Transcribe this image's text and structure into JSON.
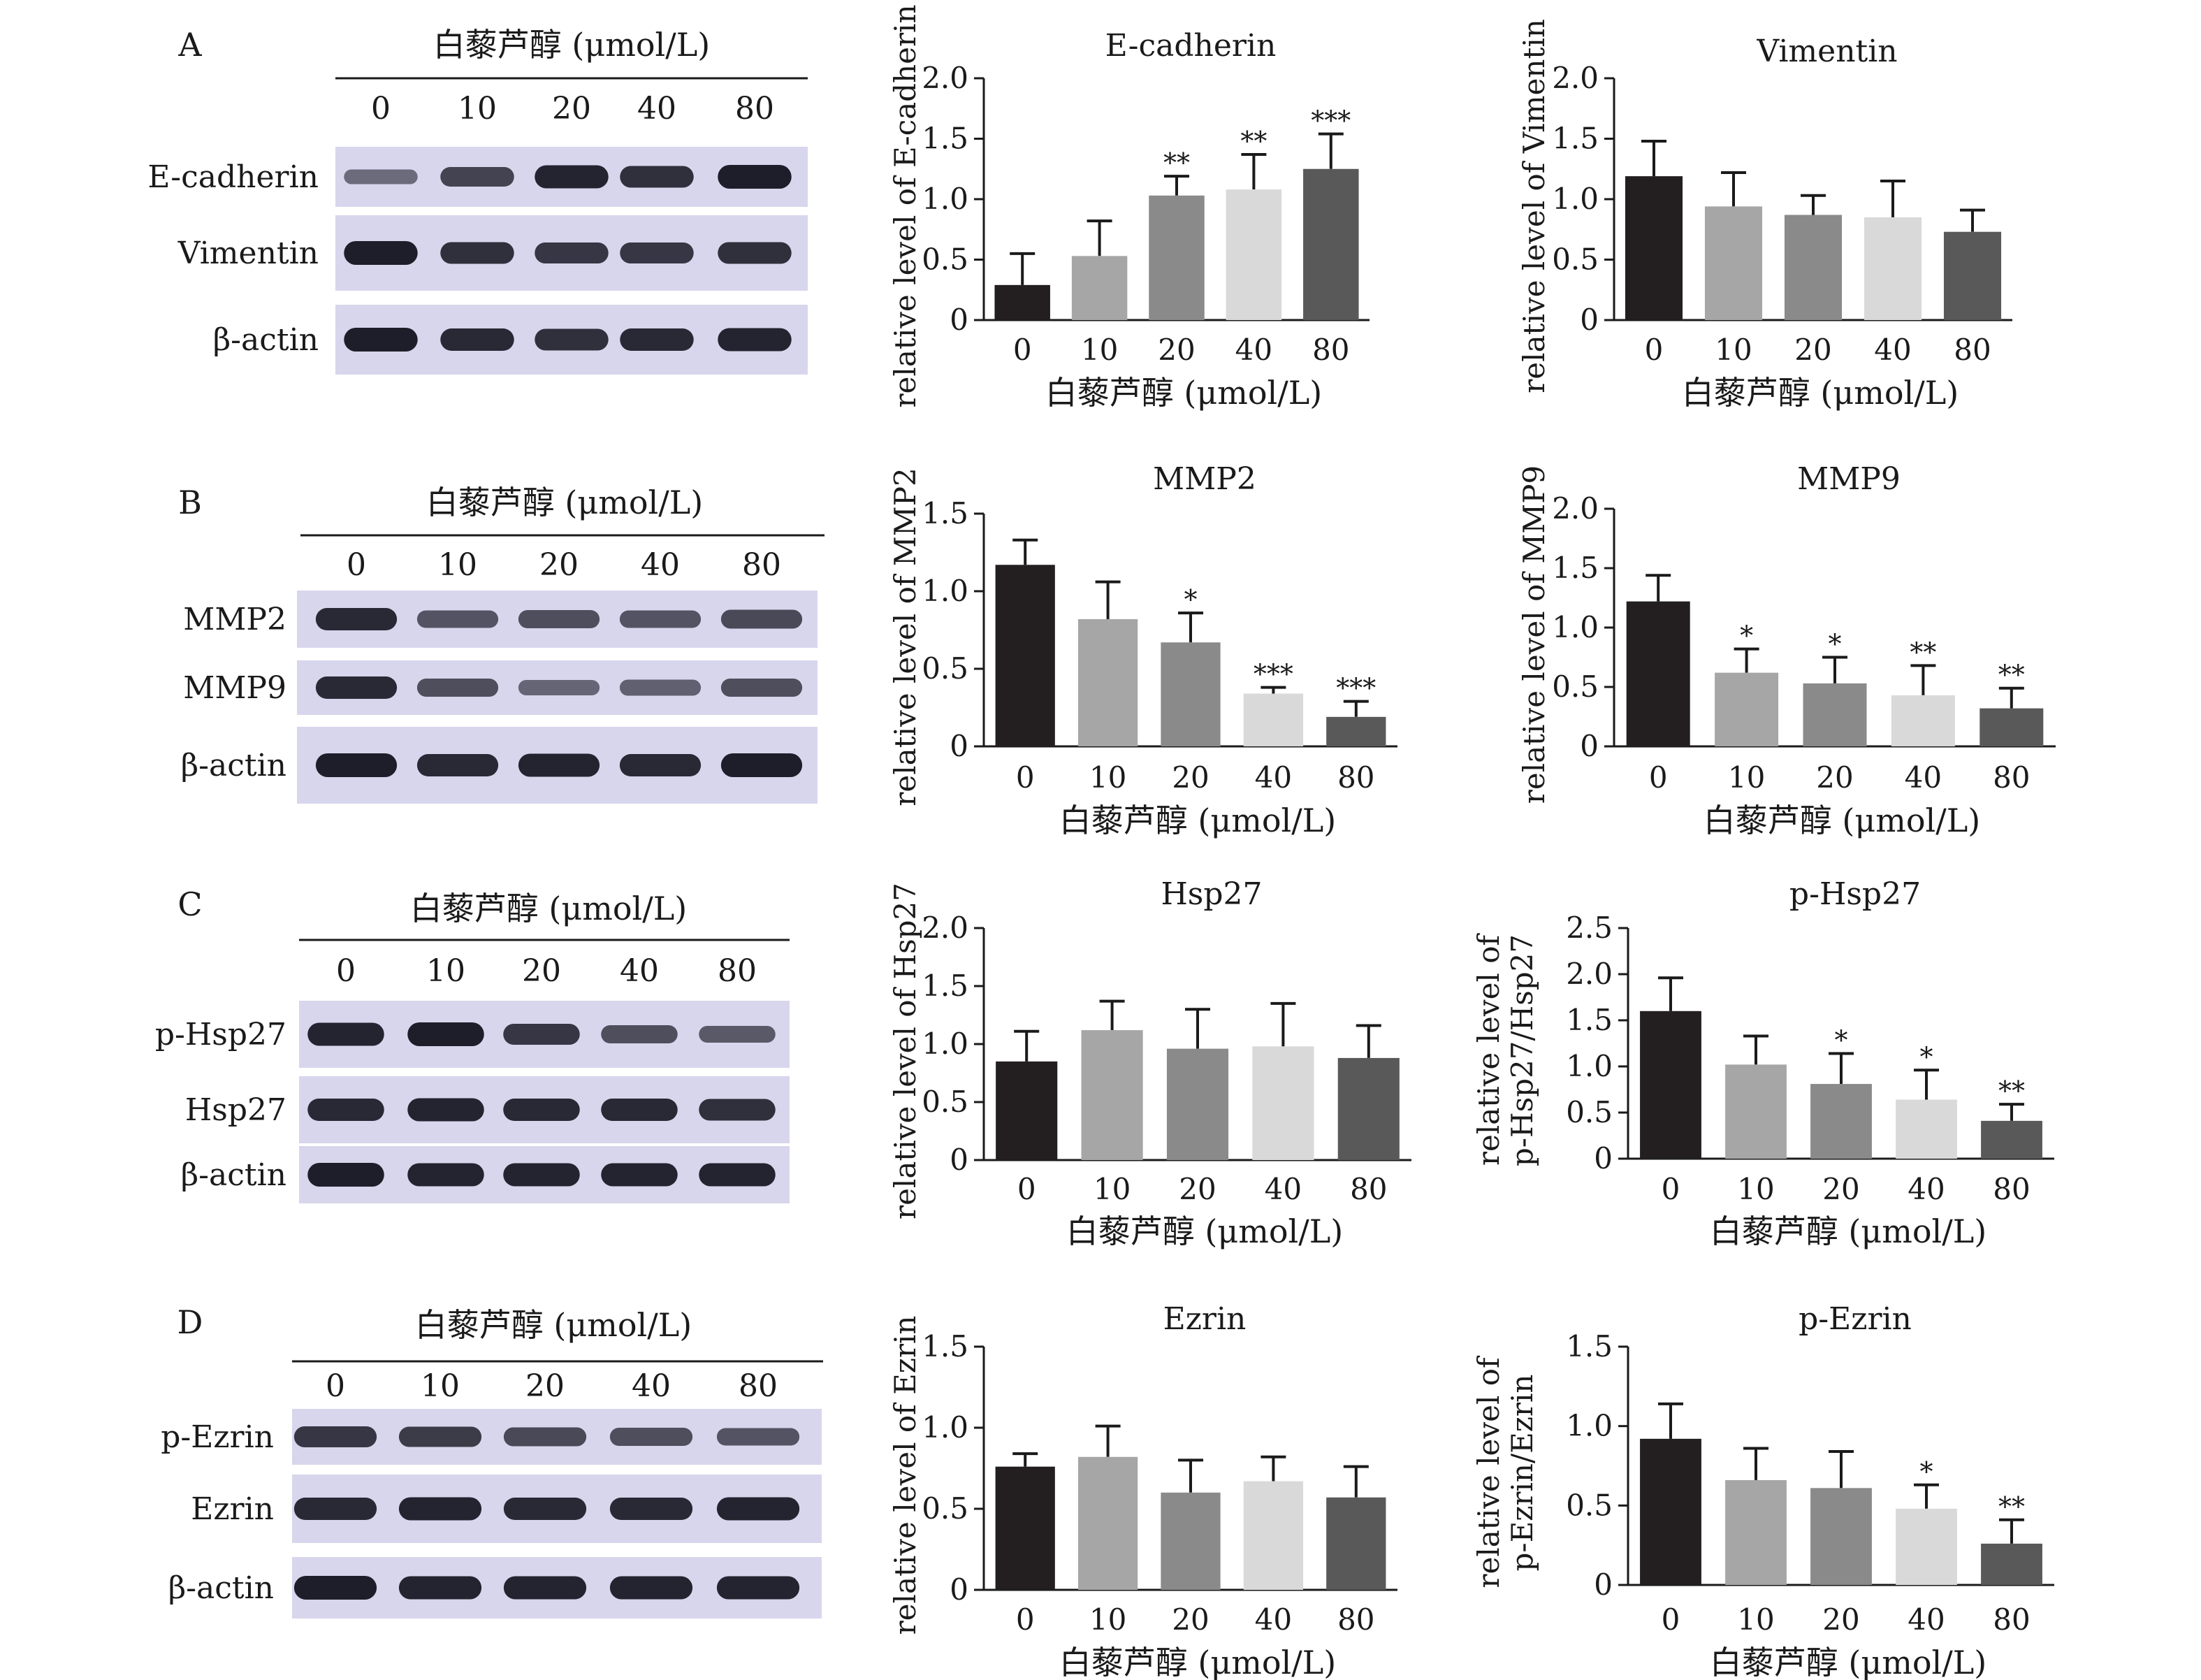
{
  "colors": {
    "bar_0": "#231f20",
    "bar_10": "#a6a6a6",
    "bar_20": "#8a8a8a",
    "bar_40": "#d9d9d9",
    "bar_80": "#595959",
    "blot_bg": "#d8d6ec",
    "band": "#1e1e2a"
  },
  "panels": [
    {
      "letter": "A",
      "blot": {
        "title": "白藜芦醇 (μmol/L)",
        "concentrations": [
          "0",
          "10",
          "20",
          "40",
          "80"
        ],
        "rows": [
          {
            "label": "E-cadherin",
            "intensity": [
              0.35,
              0.7,
              0.95,
              0.85,
              1.0
            ]
          },
          {
            "label": "Vimentin",
            "intensity": [
              1.0,
              0.85,
              0.8,
              0.8,
              0.85
            ]
          },
          {
            "label": "β-actin",
            "intensity": [
              1.0,
              0.9,
              0.85,
              0.9,
              0.95
            ]
          }
        ]
      }
    },
    {
      "letter": "B",
      "blot": {
        "title": "白藜芦醇 (μmol/L)",
        "concentrations": [
          "0",
          "10",
          "20",
          "40",
          "80"
        ],
        "rows": [
          {
            "label": "MMP2",
            "intensity": [
              0.9,
              0.55,
              0.6,
              0.55,
              0.65
            ]
          },
          {
            "label": "MMP9",
            "intensity": [
              0.9,
              0.6,
              0.4,
              0.45,
              0.6
            ]
          },
          {
            "label": "β-actin",
            "intensity": [
              1.0,
              0.9,
              0.95,
              0.9,
              1.0
            ]
          }
        ]
      }
    },
    {
      "letter": "C",
      "blot": {
        "title": "白藜芦醇 (μmol/L)",
        "concentrations": [
          "0",
          "10",
          "20",
          "40",
          "80"
        ],
        "rows": [
          {
            "label": "p-Hsp27",
            "intensity": [
              0.95,
              1.0,
              0.8,
              0.6,
              0.5
            ]
          },
          {
            "label": "Hsp27",
            "intensity": [
              0.9,
              0.95,
              0.9,
              0.9,
              0.85
            ]
          },
          {
            "label": "β-actin",
            "intensity": [
              1.0,
              0.95,
              0.95,
              0.95,
              0.95
            ]
          }
        ]
      }
    },
    {
      "letter": "D",
      "blot": {
        "title": "白藜芦醇 (μmol/L)",
        "concentrations": [
          "0",
          "10",
          "20",
          "40",
          "80"
        ],
        "rows": [
          {
            "label": "p-Ezrin",
            "intensity": [
              0.8,
              0.75,
              0.65,
              0.6,
              0.55
            ]
          },
          {
            "label": "Ezrin",
            "intensity": [
              0.9,
              0.95,
              0.9,
              0.9,
              0.95
            ]
          },
          {
            "label": "β-actin",
            "intensity": [
              1.0,
              0.95,
              0.95,
              0.95,
              0.95
            ]
          }
        ]
      }
    }
  ],
  "chart_data": [
    {
      "type": "bar",
      "title": "E-cadherin",
      "categories": [
        "0",
        "10",
        "20",
        "40",
        "80"
      ],
      "values": [
        0.29,
        0.53,
        1.03,
        1.08,
        1.25
      ],
      "errors": [
        0.26,
        0.29,
        0.16,
        0.29,
        0.29
      ],
      "significance": [
        "",
        "",
        "**",
        "**",
        "***"
      ],
      "ylabel": "relative level of E-cadherin",
      "xlabel": "白藜芦醇 (μmol/L)",
      "ylim": [
        0,
        2.0
      ],
      "yticks": [
        "0",
        "0.5",
        "1.0",
        "1.5",
        "2.0"
      ]
    },
    {
      "type": "bar",
      "title": "Vimentin",
      "categories": [
        "0",
        "10",
        "20",
        "40",
        "80"
      ],
      "values": [
        1.19,
        0.94,
        0.87,
        0.85,
        0.73
      ],
      "errors": [
        0.29,
        0.28,
        0.16,
        0.3,
        0.18
      ],
      "significance": [
        "",
        "",
        "",
        "",
        ""
      ],
      "ylabel": "relative level of Vimentin",
      "xlabel": "白藜芦醇 (μmol/L)",
      "ylim": [
        0,
        2.0
      ],
      "yticks": [
        "0",
        "0.5",
        "1.0",
        "1.5",
        "2.0"
      ]
    },
    {
      "type": "bar",
      "title": "MMP2",
      "categories": [
        "0",
        "10",
        "20",
        "40",
        "80"
      ],
      "values": [
        1.17,
        0.82,
        0.67,
        0.34,
        0.19
      ],
      "errors": [
        0.16,
        0.24,
        0.19,
        0.04,
        0.1
      ],
      "significance": [
        "",
        "",
        "*",
        "***",
        "***"
      ],
      "ylabel": "relative level of MMP2",
      "xlabel": "白藜芦醇 (μmol/L)",
      "ylim": [
        0,
        1.5
      ],
      "yticks": [
        "0",
        "0.5",
        "1.0",
        "1.5"
      ]
    },
    {
      "type": "bar",
      "title": "MMP9",
      "categories": [
        "0",
        "10",
        "20",
        "40",
        "80"
      ],
      "values": [
        1.22,
        0.62,
        0.53,
        0.43,
        0.32
      ],
      "errors": [
        0.22,
        0.2,
        0.22,
        0.25,
        0.17
      ],
      "significance": [
        "",
        "*",
        "*",
        "**",
        "**"
      ],
      "ylabel": "relative level of MMP9",
      "xlabel": "白藜芦醇 (μmol/L)",
      "ylim": [
        0,
        2.0
      ],
      "yticks": [
        "0",
        "0.5",
        "1.0",
        "1.5",
        "2.0"
      ]
    },
    {
      "type": "bar",
      "title": "Hsp27",
      "categories": [
        "0",
        "10",
        "20",
        "40",
        "80"
      ],
      "values": [
        0.85,
        1.12,
        0.96,
        0.98,
        0.88
      ],
      "errors": [
        0.26,
        0.25,
        0.34,
        0.37,
        0.28
      ],
      "significance": [
        "",
        "",
        "",
        "",
        ""
      ],
      "ylabel": "relative level of Hsp27",
      "xlabel": "白藜芦醇 (μmol/L)",
      "ylim": [
        0,
        2.0
      ],
      "yticks": [
        "0",
        "0.5",
        "1.0",
        "1.5",
        "2.0"
      ]
    },
    {
      "type": "bar",
      "title": "p-Hsp27",
      "categories": [
        "0",
        "10",
        "20",
        "40",
        "80"
      ],
      "values": [
        1.6,
        1.02,
        0.81,
        0.64,
        0.41
      ],
      "errors": [
        0.36,
        0.31,
        0.33,
        0.32,
        0.18
      ],
      "significance": [
        "",
        "",
        "*",
        "*",
        "**"
      ],
      "ylabel": "relative level of p-Hsp27/Hsp27",
      "xlabel": "白藜芦醇 (μmol/L)",
      "ylim": [
        0,
        2.5
      ],
      "yticks": [
        "0",
        "0.5",
        "1.0",
        "1.5",
        "2.0",
        "2.5"
      ]
    },
    {
      "type": "bar",
      "title": "Ezrin",
      "categories": [
        "0",
        "10",
        "20",
        "40",
        "80"
      ],
      "values": [
        0.76,
        0.82,
        0.6,
        0.67,
        0.57
      ],
      "errors": [
        0.08,
        0.19,
        0.2,
        0.15,
        0.19
      ],
      "significance": [
        "",
        "",
        "",
        "",
        ""
      ],
      "ylabel": "relative level of Ezrin",
      "xlabel": "白藜芦醇 (μmol/L)",
      "ylim": [
        0,
        1.5
      ],
      "yticks": [
        "0",
        "0.5",
        "1.0",
        "1.5"
      ]
    },
    {
      "type": "bar",
      "title": "p-Ezrin",
      "categories": [
        "0",
        "10",
        "20",
        "40",
        "80"
      ],
      "values": [
        0.92,
        0.66,
        0.61,
        0.48,
        0.26
      ],
      "errors": [
        0.22,
        0.2,
        0.23,
        0.15,
        0.15
      ],
      "significance": [
        "",
        "",
        "",
        "*",
        "**"
      ],
      "ylabel": "relative level of p-Ezrin/Ezrin",
      "xlabel": "白藜芦醇 (μmol/L)",
      "ylim": [
        0,
        1.5
      ],
      "yticks": [
        "0",
        "0.5",
        "1.0",
        "1.5"
      ]
    }
  ]
}
